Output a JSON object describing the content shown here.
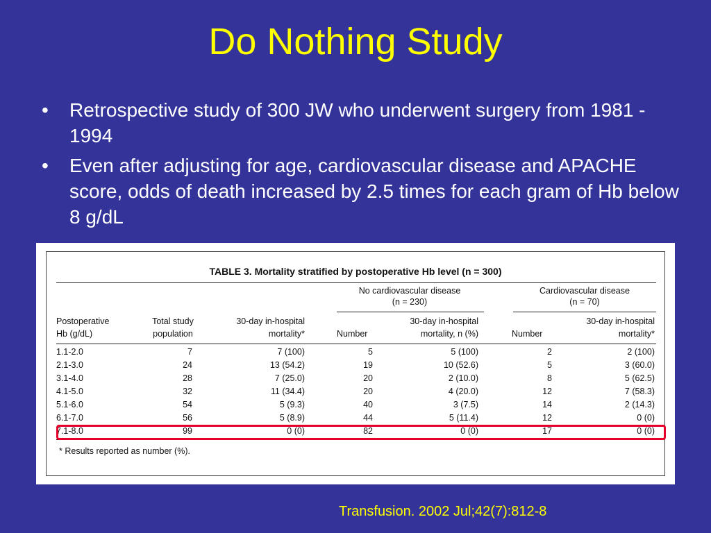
{
  "slide": {
    "title": "Do Nothing Study",
    "bullets": [
      "Retrospective study of 300 JW who underwent surgery from 1981 - 1994",
      "Even after adjusting for age, cardiovascular disease and APACHE score, odds of death increased by 2.5 times for each gram of Hb below 8 g/dL"
    ],
    "citation": "Transfusion. 2002 Jul;42(7):812-8"
  },
  "table": {
    "caption": "TABLE 3. Mortality stratified by postoperative Hb level (n = 300)",
    "group_no_cvd": [
      "No cardiovascular disease",
      "(n = 230)"
    ],
    "group_cvd": [
      "Cardiovascular disease",
      "(n = 70)"
    ],
    "headers": {
      "hb": [
        "Postoperative",
        "Hb (g/dL)"
      ],
      "total": [
        "Total study",
        "population"
      ],
      "mort": [
        "30-day in-hospital",
        "mortality*"
      ],
      "num1": "Number",
      "mort1": [
        "30-day in-hospital",
        "mortality, n (%)"
      ],
      "num2": "Number",
      "mort2": [
        "30-day in-hospital",
        "mortality*"
      ]
    },
    "rows": [
      [
        "1.1-2.0",
        "7",
        "7 (100)",
        "5",
        "5 (100)",
        "2",
        "2 (100)"
      ],
      [
        "2.1-3.0",
        "24",
        "13 (54.2)",
        "19",
        "10 (52.6)",
        "5",
        "3 (60.0)"
      ],
      [
        "3.1-4.0",
        "28",
        "7 (25.0)",
        "20",
        "2 (10.0)",
        "8",
        "5 (62.5)"
      ],
      [
        "4.1-5.0",
        "32",
        "11 (34.4)",
        "20",
        "4 (20.0)",
        "12",
        "7 (58.3)"
      ],
      [
        "5.1-6.0",
        "54",
        "5 (9.3)",
        "40",
        "3 (7.5)",
        "14",
        "2 (14.3)"
      ],
      [
        "6.1-7.0",
        "56",
        "5 (8.9)",
        "44",
        "5 (11.4)",
        "12",
        "0 (0)"
      ],
      [
        "7.1-8.0",
        "99",
        "0 (0)",
        "82",
        "0 (0)",
        "17",
        "0 (0)"
      ]
    ],
    "footnote": "*   Results reported as number (%)."
  }
}
